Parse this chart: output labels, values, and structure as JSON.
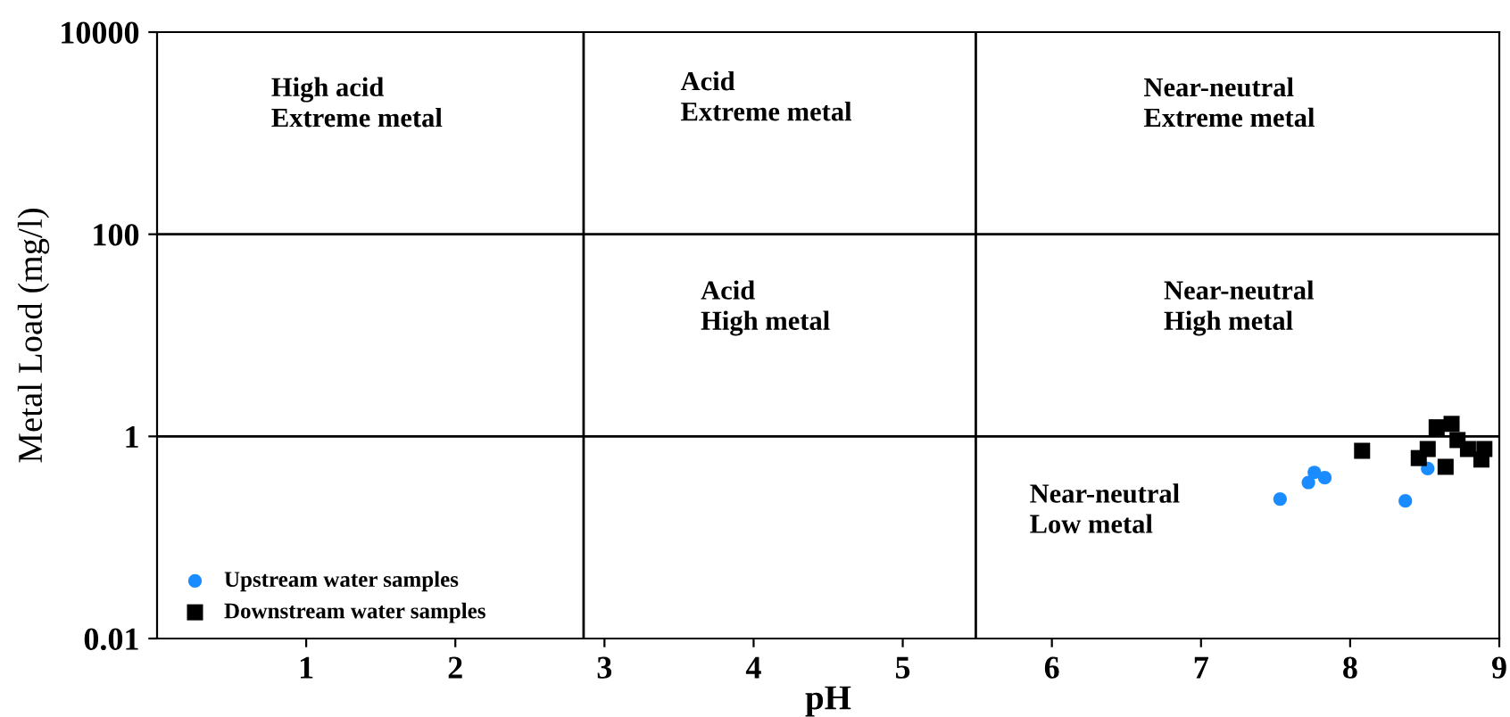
{
  "chart_data": {
    "type": "scatter",
    "xlabel": "pH",
    "ylabel": "Metal Load (mg/l)",
    "log": "y",
    "xlim": [
      0,
      9
    ],
    "xticks": [
      1,
      2,
      3,
      4,
      5,
      6,
      7,
      8,
      9
    ],
    "ylim": [
      0.01,
      10000
    ],
    "yticks": [
      0.01,
      1,
      100,
      10000
    ],
    "ref_lines": [
      {
        "axis": "x",
        "value": 2.86,
        "color": "#000000"
      },
      {
        "axis": "x",
        "value": 5.49,
        "color": "#000000"
      },
      {
        "axis": "y",
        "value": 100,
        "color": "#000000"
      },
      {
        "axis": "y",
        "value": 1,
        "color": "#000000"
      }
    ],
    "annotations": [
      "High acid\nExtreme metal",
      "Acid\nExtreme metal",
      "Near-neutral\nExtreme metal",
      "Acid\nHigh metal",
      "Near-neutral\nHigh metal",
      "Near-neutral\nLow metal"
    ],
    "legend": "bottom left",
    "series": [
      {
        "name": "Upstream water samples",
        "color": "#1a8cff",
        "marker": "circle",
        "x": [
          7.53,
          7.72,
          7.76,
          7.83,
          8.37,
          8.52
        ],
        "values": [
          0.24,
          0.35,
          0.44,
          0.39,
          0.23,
          0.48
        ]
      },
      {
        "name": "Downstream water samples",
        "color": "#000000",
        "marker": "square",
        "x": [
          8.08,
          8.58,
          8.68,
          8.46,
          8.64,
          8.79,
          8.9,
          8.88,
          8.72,
          8.52
        ],
        "values": [
          0.72,
          1.23,
          1.33,
          0.61,
          0.5,
          0.75,
          0.75,
          0.59,
          0.92,
          0.75
        ]
      }
    ]
  }
}
